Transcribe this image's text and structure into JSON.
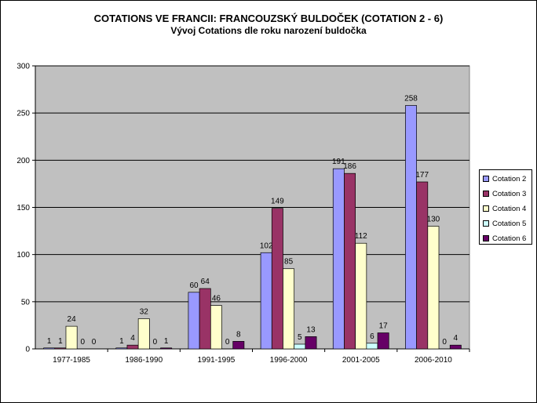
{
  "title": "COTATIONS VE FRANCII: FRANCOUZSKÝ  BULDOČEK  (COTATION  2 - 6)",
  "subtitle": "Vývoj Cotations  dle roku narození buldočka",
  "chart_data": {
    "type": "bar",
    "categories": [
      "1977-1985",
      "1986-1990",
      "1991-1995",
      "1996-2000",
      "2001-2005",
      "2006-2010"
    ],
    "series": [
      {
        "name": "Cotation 2",
        "color": "#9999ff",
        "values": [
          1,
          1,
          60,
          102,
          191,
          258
        ]
      },
      {
        "name": "Cotation 3",
        "color": "#993366",
        "values": [
          1,
          4,
          64,
          149,
          186,
          177
        ]
      },
      {
        "name": "Cotation 4",
        "color": "#ffffcc",
        "values": [
          24,
          32,
          46,
          85,
          112,
          130
        ]
      },
      {
        "name": "Cotation 5",
        "color": "#ccffff",
        "values": [
          0,
          0,
          0,
          5,
          6,
          0
        ]
      },
      {
        "name": "Cotation 6",
        "color": "#660066",
        "values": [
          0,
          1,
          8,
          13,
          17,
          4
        ]
      }
    ],
    "y_ticks": [
      "0",
      "50",
      "100",
      "150",
      "200",
      "250",
      "300"
    ],
    "ylim": [
      0,
      300
    ],
    "plot_background": "#c0c0c0",
    "grid": true,
    "legend_position": "right"
  }
}
